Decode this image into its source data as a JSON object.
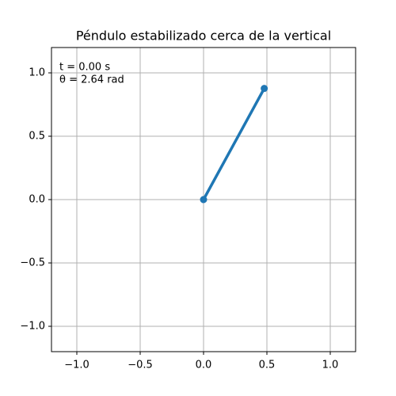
{
  "chart_data": {
    "type": "line",
    "title": "Péndulo estabilizado cerca de la vertical",
    "annotations": [
      "t = 0.00 s",
      "θ = 2.64 rad"
    ],
    "x": [
      0,
      0.479
    ],
    "series": [
      {
        "color": "#1f77b4",
        "values": [
          0,
          0.877
        ]
      }
    ],
    "xlim": [
      -1.2,
      1.2
    ],
    "ylim": [
      -1.2,
      1.2
    ],
    "xticks": [
      {
        "value": -1,
        "label": "−1.0"
      },
      {
        "value": -0.5,
        "label": "−0.5"
      },
      {
        "value": 0,
        "label": "0.0"
      },
      0.5,
      {
        "value": 1,
        "label": "1.0"
      }
    ],
    "yticks": [
      {
        "value": -1,
        "label": "−1.0"
      },
      {
        "value": -0.5,
        "label": "−0.5"
      },
      {
        "value": 0,
        "label": "0.0"
      },
      0.5,
      {
        "value": 1,
        "label": "1.0"
      }
    ],
    "grid": true
  }
}
